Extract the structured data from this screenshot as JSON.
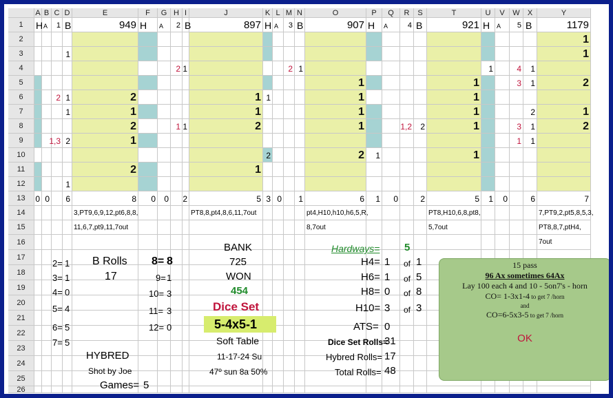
{
  "sheet": {
    "columns": [
      "A",
      "B",
      "C",
      "D",
      "E",
      "F",
      "G",
      "H",
      "I",
      "J",
      "K",
      "L",
      "M",
      "N",
      "O",
      "P",
      "Q",
      "R",
      "S",
      "T",
      "U",
      "V",
      "W",
      "X",
      "Y"
    ],
    "rows": [
      "1",
      "2",
      "3",
      "4",
      "5",
      "6",
      "7",
      "8",
      "9",
      "10",
      "11",
      "12",
      "13",
      "14",
      "15",
      "16",
      "17",
      "18",
      "19",
      "20",
      "21",
      "22",
      "23",
      "24",
      "25",
      "26"
    ]
  },
  "grid": {
    "cells": [
      [
        "A1",
        "H"
      ],
      [
        "B1",
        "A"
      ],
      [
        "C1",
        "1"
      ],
      [
        "D1",
        "B"
      ],
      [
        "E1",
        "949"
      ],
      [
        "F1",
        "H"
      ],
      [
        "G1",
        "A"
      ],
      [
        "H1",
        "2"
      ],
      [
        "I1",
        "B"
      ],
      [
        "J1",
        "897"
      ],
      [
        "K1",
        "H"
      ],
      [
        "L1",
        "A"
      ],
      [
        "M1",
        "3"
      ],
      [
        "N1",
        "B"
      ],
      [
        "O1",
        "907"
      ],
      [
        "P1",
        "H"
      ],
      [
        "Q1",
        "A"
      ],
      [
        "R1",
        "4"
      ],
      [
        "S1",
        "B"
      ],
      [
        "T1",
        "921"
      ],
      [
        "U1",
        "H"
      ],
      [
        "V1",
        "A"
      ],
      [
        "W1",
        "5"
      ],
      [
        "X1",
        "B"
      ],
      [
        "Y1",
        "1179"
      ],
      [
        "Y2",
        "1"
      ],
      [
        "D3",
        "1"
      ],
      [
        "Y3",
        "1"
      ],
      [
        "H4",
        "2"
      ],
      [
        "I4",
        "1"
      ],
      [
        "M4",
        "2"
      ],
      [
        "N4",
        "1"
      ],
      [
        "U4",
        "1"
      ],
      [
        "W4",
        "4"
      ],
      [
        "X4",
        "1"
      ],
      [
        "O5",
        "1"
      ],
      [
        "T5",
        "1"
      ],
      [
        "W5",
        "3"
      ],
      [
        "X5",
        "1"
      ],
      [
        "Y5",
        "2"
      ],
      [
        "C6",
        "2"
      ],
      [
        "D6",
        "1"
      ],
      [
        "E6",
        "2"
      ],
      [
        "J6",
        "1"
      ],
      [
        "K6",
        "1"
      ],
      [
        "O6",
        "1"
      ],
      [
        "T6",
        "1"
      ],
      [
        "D7",
        "1"
      ],
      [
        "E7",
        "1"
      ],
      [
        "J7",
        "1"
      ],
      [
        "O7",
        "1"
      ],
      [
        "T7",
        "1"
      ],
      [
        "X7",
        "2"
      ],
      [
        "Y7",
        "1"
      ],
      [
        "E8",
        "2"
      ],
      [
        "H8",
        "1"
      ],
      [
        "I8",
        "1"
      ],
      [
        "J8",
        "2"
      ],
      [
        "O8",
        "1"
      ],
      [
        "R8",
        "1,2"
      ],
      [
        "S8",
        "2"
      ],
      [
        "T8",
        "1"
      ],
      [
        "W8",
        "3"
      ],
      [
        "X8",
        "1"
      ],
      [
        "Y8",
        "2"
      ],
      [
        "C9",
        "1,3"
      ],
      [
        "D9",
        "2"
      ],
      [
        "E9",
        "1"
      ],
      [
        "W9",
        "1"
      ],
      [
        "X9",
        "1"
      ],
      [
        "K10",
        "2"
      ],
      [
        "O10",
        "2"
      ],
      [
        "P10",
        "1"
      ],
      [
        "T10",
        "1"
      ],
      [
        "E11",
        "2"
      ],
      [
        "J11",
        "1"
      ],
      [
        "D12",
        "1"
      ],
      [
        "A13",
        "0"
      ],
      [
        "B13",
        "0"
      ],
      [
        "D13",
        "6"
      ],
      [
        "E13",
        "8"
      ],
      [
        "F13",
        "0"
      ],
      [
        "G13",
        "0"
      ],
      [
        "I13",
        "2"
      ],
      [
        "J13",
        "5"
      ],
      [
        "K13",
        "3"
      ],
      [
        "L13",
        "0"
      ],
      [
        "N13",
        "1"
      ],
      [
        "O13",
        "6"
      ],
      [
        "P13",
        "1"
      ],
      [
        "Q13",
        "0"
      ],
      [
        "S13",
        "2"
      ],
      [
        "T13",
        "5"
      ],
      [
        "U13",
        "1"
      ],
      [
        "V13",
        "0"
      ],
      [
        "X13",
        "6"
      ],
      [
        "Y13",
        "7"
      ]
    ],
    "text_rows": {
      "e14": "3,PT9,6,9,12,pt6,8,8,",
      "j14": "PT8,8,pt4,8,6,11,7out",
      "o14": "pt4,H10,h10,h6,5,R,",
      "t14": "PT8,H10,6,8,pt8,",
      "y14": "7,PT9,2,pt5,8,5,3,",
      "e15": "11,6,7,pt9,11,7out",
      "o15": "8,7out",
      "t15": "5,7out",
      "y15": "PT8,8,7,ptH4,",
      "y16": "7out"
    }
  },
  "summary": {
    "rolls_table": [
      {
        "label": "2=",
        "value": "1"
      },
      {
        "label": "3=",
        "value": "1"
      },
      {
        "label": "4=",
        "value": "0"
      },
      {
        "label": "5=",
        "value": "4"
      },
      {
        "label": "6=",
        "value": "5"
      },
      {
        "label": "7=",
        "value": "5"
      }
    ],
    "b_rolls_label": "B Rolls",
    "b_rolls_value": "17",
    "right_counts": [
      {
        "label": "8=",
        "value": "8"
      },
      {
        "label": "9=",
        "value": "1"
      },
      {
        "label": "10=",
        "value": "3"
      },
      {
        "label": "11=",
        "value": "3"
      },
      {
        "label": "12=",
        "value": "0"
      }
    ],
    "hybred": "HYBRED",
    "shot_by": "Shot by Joe",
    "games_label": "Games=",
    "games_value": "5",
    "bank_label": "BANK",
    "bank_value": "725",
    "won_label": "WON",
    "won_value": "454",
    "dice_set_label": "Dice Set",
    "dice_set_value": "5-4x5-1",
    "table_type": "Soft Table",
    "date": "11-17-24 Su",
    "weather": "47º sun 8a 50%",
    "hardways_label": "Hardways=",
    "hardways_value": "5",
    "hard": [
      {
        "label": "H4=",
        "value": "1",
        "of": "of",
        "total": "1"
      },
      {
        "label": "H6=",
        "value": "1",
        "of": "of",
        "total": "5"
      },
      {
        "label": "H8=",
        "value": "0",
        "of": "of",
        "total": "8"
      },
      {
        "label": "H10=",
        "value": "3",
        "of": "of",
        "total": "3"
      }
    ],
    "ats_label": "ATS=",
    "ats_value": "0",
    "dice_set_rolls_label": "Dice Set Rolls=",
    "dice_set_rolls_value": "31",
    "hybred_rolls_label": "Hybred Rolls=",
    "hybred_rolls_value": "17",
    "total_rolls_label": "Total Rolls=",
    "total_rolls_value": "48"
  },
  "note": {
    "line1": "15 pass",
    "line2": "96 Ax sometimes 64Ax",
    "line3": "Lay  100 each 4 and 10 - 5on7's - horn",
    "line4": "CO= 1-3x1-4",
    "line4b": " to get 7 /horn",
    "line5": "and",
    "line6": "CO=6-5x3-5",
    "line6b": " to get 7 /horn",
    "ok": "OK"
  },
  "colors": {
    "frame": "#0b1f8c",
    "yellow_fill": "#eaf0a8",
    "teal_fill": "#a6d3d3",
    "note_bg": "#a6c98a",
    "red_text": "#c0143c",
    "green_text": "#1f8a2a"
  }
}
